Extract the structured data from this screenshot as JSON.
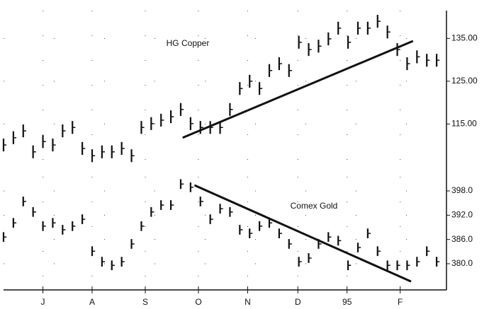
{
  "chart_data": [
    {
      "type": "ohlc",
      "annotation": "HG Copper",
      "x": [
        0,
        1,
        2,
        3,
        4,
        5,
        6,
        7,
        8,
        9,
        10,
        11,
        12,
        13,
        14,
        15,
        16,
        17,
        18,
        19,
        20,
        21,
        22,
        23,
        24,
        25,
        26,
        27,
        28,
        29,
        30,
        31,
        32,
        33,
        34,
        35,
        36,
        37,
        38,
        39,
        40,
        41,
        42,
        43,
        44
      ],
      "high": [
        111.6,
        113.3,
        114.9,
        110,
        112.4,
        111.6,
        114.9,
        115.7,
        110.8,
        109.1,
        110,
        110,
        110.8,
        109.1,
        115.7,
        116.6,
        117.4,
        118.2,
        119.9,
        116.6,
        115.7,
        115.7,
        115.7,
        119.9,
        124.8,
        126.5,
        124.8,
        129,
        130.6,
        129,
        135.6,
        133.9,
        134.7,
        136.4,
        138.9,
        135.6,
        138.9,
        138.9,
        140.5,
        138,
        133.9,
        130.6,
        132.2,
        131.4,
        131.4
      ],
      "low": [
        108.6,
        110.3,
        111.9,
        107,
        109.4,
        108.6,
        111.9,
        112.7,
        107.8,
        106.1,
        107,
        107,
        107.8,
        106.1,
        112.7,
        113.6,
        114.4,
        115.2,
        116.9,
        113.6,
        112.7,
        112.7,
        112.7,
        116.9,
        121.8,
        123.5,
        121.8,
        126,
        127.6,
        126,
        132.6,
        130.9,
        131.7,
        133.4,
        135.9,
        132.6,
        135.9,
        135.9,
        137.5,
        135,
        130.9,
        127.6,
        129.2,
        128.4,
        128.4
      ],
      "close": [
        110.1,
        111.8,
        113.4,
        108.5,
        110.9,
        110.1,
        113.4,
        114.2,
        109.3,
        107.6,
        108.5,
        108.5,
        109.3,
        107.6,
        114.2,
        115.1,
        115.9,
        116.7,
        118.4,
        115.1,
        114.2,
        114.2,
        114.2,
        118.4,
        123.3,
        125,
        123.3,
        127.5,
        129.1,
        127.5,
        134.1,
        132.4,
        133.2,
        134.9,
        137.4,
        134.1,
        137.4,
        137.4,
        139,
        136.5,
        132.4,
        129.1,
        130.7,
        129.9,
        129.9
      ],
      "color": "#111111",
      "trendline": {
        "x": [
          18.2,
          41.6
        ],
        "y": [
          111.8,
          134.4
        ]
      },
      "xlim": [
        0,
        45
      ],
      "ylim": [
        103.5,
        141.5
      ],
      "yticks": [
        {
          "value": 115,
          "label": "115.00"
        },
        {
          "value": 125,
          "label": "125.00"
        },
        {
          "value": 135,
          "label": "135.00"
        }
      ],
      "grid": true
    },
    {
      "type": "ohlc",
      "annotation": "Comex Gold",
      "x": [
        0,
        1,
        2,
        3,
        4,
        5,
        6,
        7,
        8,
        9,
        10,
        11,
        12,
        13,
        14,
        15,
        16,
        17,
        18,
        19,
        20,
        21,
        22,
        23,
        24,
        25,
        26,
        27,
        28,
        29,
        30,
        31,
        32,
        33,
        34,
        35,
        36,
        37,
        38,
        39,
        40,
        41,
        42,
        43,
        44
      ],
      "high": [
        387.8,
        391.3,
        396.6,
        394,
        390.5,
        391.3,
        389.6,
        390.5,
        392.2,
        384.3,
        381.7,
        380.8,
        381.7,
        386.1,
        390.5,
        394,
        395.7,
        395.7,
        400.9,
        400.1,
        396.6,
        392.2,
        394.8,
        394,
        389.6,
        388.7,
        390.5,
        391.3,
        388.7,
        386.1,
        381.7,
        382.6,
        386.1,
        387.8,
        386.9,
        380.8,
        385.2,
        388.7,
        384.3,
        380.8,
        380.8,
        380.8,
        381.7,
        384.3,
        381.7
      ],
      "low": [
        385.4,
        388.9,
        394.2,
        391.6,
        388.1,
        388.9,
        387.2,
        388.1,
        389.8,
        381.9,
        379.3,
        378.4,
        379.3,
        383.7,
        388.1,
        391.6,
        393.3,
        393.3,
        398.5,
        397.7,
        394.2,
        389.8,
        392.4,
        391.6,
        387.2,
        386.3,
        388.1,
        388.9,
        386.3,
        383.7,
        379.3,
        380.2,
        383.7,
        385.4,
        384.5,
        378.4,
        382.8,
        386.3,
        381.9,
        378.4,
        378.4,
        378.4,
        379.3,
        381.9,
        379.3
      ],
      "close": [
        386.6,
        390.1,
        395.4,
        392.8,
        389.3,
        390.1,
        388.4,
        389.3,
        391,
        383.1,
        380.5,
        379.6,
        380.5,
        384.9,
        389.3,
        392.8,
        394.5,
        394.5,
        399.7,
        398.9,
        395.4,
        391,
        393.6,
        392.8,
        388.4,
        387.5,
        389.3,
        390.1,
        387.5,
        384.9,
        380.5,
        381.4,
        384.9,
        386.6,
        385.7,
        379.6,
        384,
        387.5,
        383.1,
        379.6,
        379.6,
        379.6,
        380.5,
        383.1,
        380.5
      ],
      "color": "#111111",
      "trendline": {
        "x": [
          19.4,
          41.4
        ],
        "y": [
          399.4,
          375.6
        ]
      },
      "xlim": [
        0,
        45
      ],
      "ylim": [
        374.4,
        401.5
      ],
      "yticks": [
        {
          "value": 380,
          "label": "380.0"
        },
        {
          "value": 386,
          "label": "386.0"
        },
        {
          "value": 392,
          "label": "392.0"
        },
        {
          "value": 398,
          "label": "398.0"
        }
      ],
      "xticks": [
        {
          "value": 4,
          "label": "J"
        },
        {
          "value": 9,
          "label": "A"
        },
        {
          "value": 14.4,
          "label": "S"
        },
        {
          "value": 19.8,
          "label": "O"
        },
        {
          "value": 24.8,
          "label": "N"
        },
        {
          "value": 29.9,
          "label": "D"
        },
        {
          "value": 34.9,
          "label": "95"
        },
        {
          "value": 40.3,
          "label": "F"
        }
      ],
      "grid": true
    }
  ]
}
